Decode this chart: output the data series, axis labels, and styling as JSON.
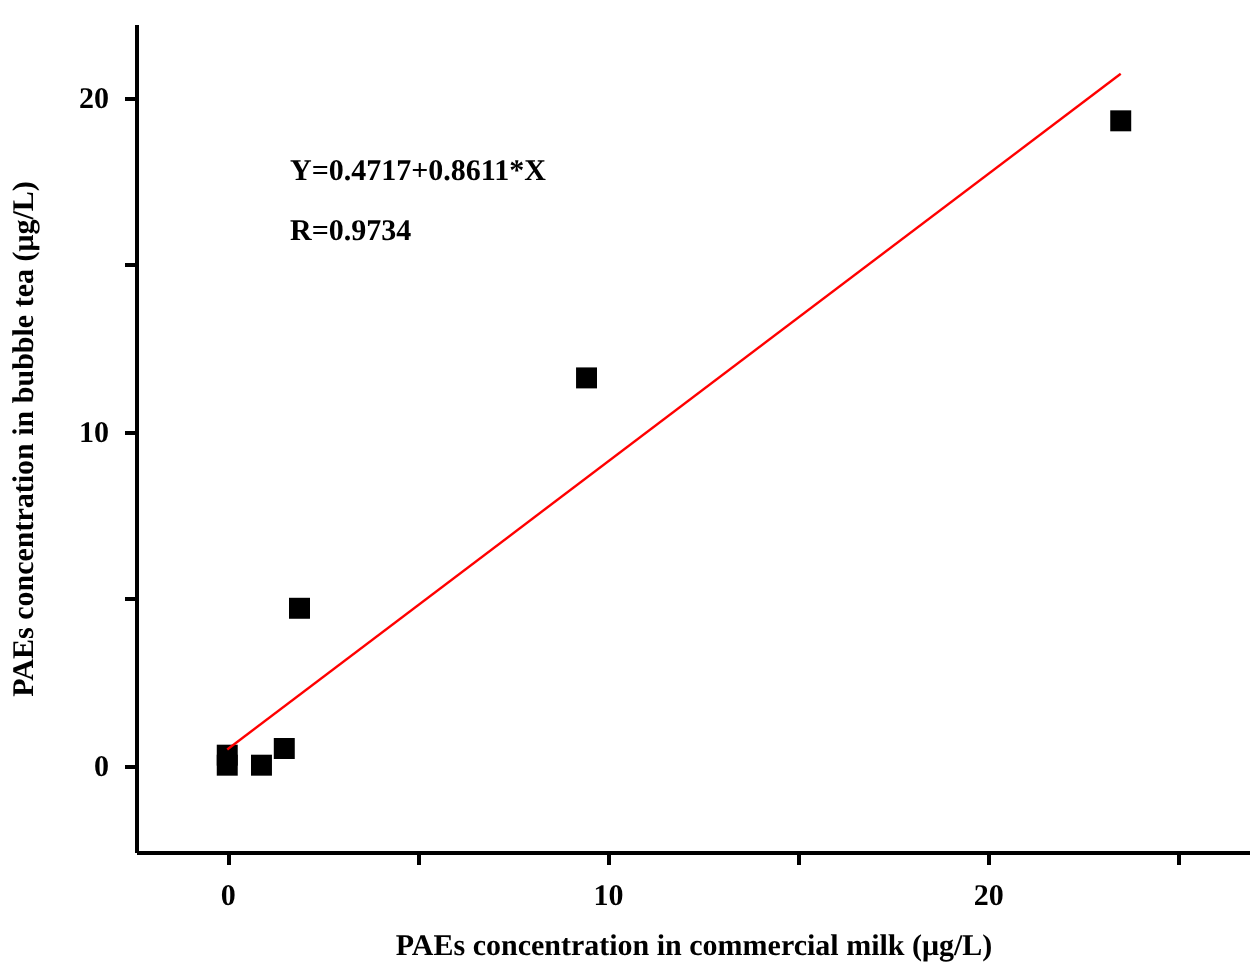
{
  "chart_data": {
    "type": "scatter",
    "xlabel": "PAEs concentration in commercial milk (μg/L)",
    "ylabel": "PAEs concentration in bubble tea (μg/L)",
    "annotations": [
      "Y=0.4717+0.8611*X",
      "R=0.9734"
    ],
    "xlim": [
      -2.4,
      26.9
    ],
    "ylim": [
      -2.6,
      22.2
    ],
    "xticks": [
      0,
      {
        "value": 5,
        "label": null
      },
      10,
      {
        "value": 15,
        "label": null
      },
      20,
      {
        "value": 25,
        "label": null
      }
    ],
    "yticks": [
      0,
      {
        "value": 5,
        "label": null
      },
      10,
      {
        "value": 15,
        "label": null
      },
      20
    ],
    "grid": false,
    "series": [
      {
        "marker": "square",
        "color": "#000000",
        "x": [
          0,
          0,
          0.9,
          1.5,
          1.9,
          9.45,
          23.5
        ],
        "values": [
          0.3,
          0,
          0,
          0.5,
          4.7,
          11.6,
          19.3
        ]
      },
      {
        "type": "line",
        "color": "#ff0000",
        "line_style": "solid",
        "x": [
          0,
          23.5
        ],
        "values": [
          0.47,
          20.71
        ]
      }
    ]
  }
}
